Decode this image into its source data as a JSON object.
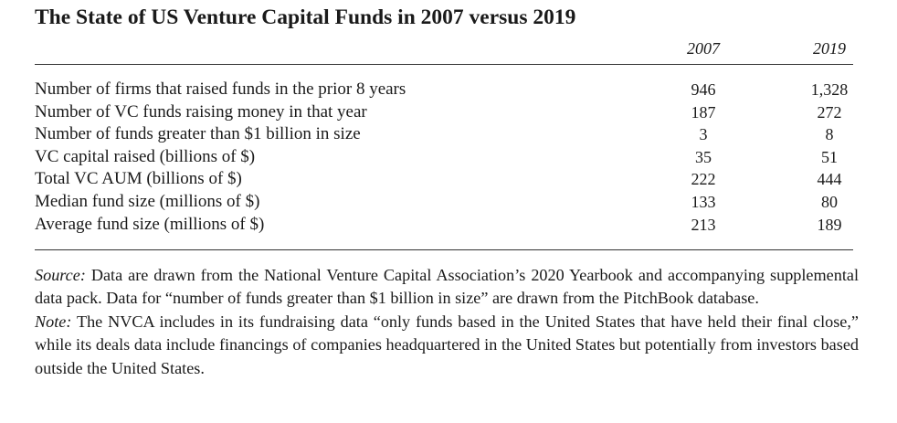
{
  "title": "The State of US Venture Capital Funds in 2007 versus 2019",
  "columns": [
    "2007",
    "2019"
  ],
  "rows": [
    {
      "label": "Number of firms that raised funds in the prior 8 years",
      "v2007": "946",
      "v2019": "1,328"
    },
    {
      "label": "Number of VC funds raising money in that year",
      "v2007": "187",
      "v2019": "272"
    },
    {
      "label": "Number of funds greater than $1 billion in size",
      "v2007": "3",
      "v2019": "8"
    },
    {
      "label": "VC capital raised (billions of $)",
      "v2007": "35",
      "v2019": "51"
    },
    {
      "label": "Total VC AUM (billions of $)",
      "v2007": "222",
      "v2019": "444"
    },
    {
      "label": "Median fund size (millions of $)",
      "v2007": "133",
      "v2019": "80"
    },
    {
      "label": "Average fund size (millions of $)",
      "v2007": "213",
      "v2019": "189"
    }
  ],
  "source": {
    "label": "Source:",
    "text": "Data are drawn from the National Venture Capital Association’s 2020 Yearbook and accompanying supplemental data pack. Data for “number of funds greater than $1 billion in size” are drawn from the PitchBook database."
  },
  "note": {
    "label": "Note:",
    "text": "The NVCA includes in its fundraising data “only funds based in the United States that have held their final close,” while its deals data include financings of companies headquartered in the United States but potentially from investors based outside the United States."
  }
}
